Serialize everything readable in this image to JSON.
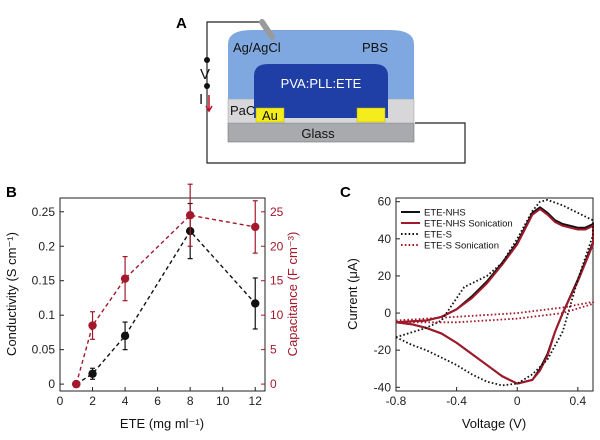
{
  "panel_labels": {
    "a": "A",
    "b": "B",
    "c": "C"
  },
  "schematic": {
    "labels": {
      "electrode": "Ag/AgCl",
      "electrolyte": "PBS",
      "film": "PVA:PLL:ETE",
      "passivation": "PaC",
      "contact": "Au",
      "substrate": "Glass",
      "voltage": "V",
      "current": "I"
    },
    "colors": {
      "electrolyte": "#7fa8e0",
      "film": "#1f3fa6",
      "gold": "#f4ec1c",
      "glass": "#a9aaae",
      "pac": "#d7d7d9"
    }
  },
  "chart_data": [
    {
      "type": "scatter",
      "panel": "B",
      "xlabel": "ETE (mg ml⁻¹)",
      "ylabel": "Conductivity (S cm⁻¹)",
      "y2label": "Capacitance (F cm⁻³)",
      "xlim": [
        0,
        12.6
      ],
      "ylim": [
        -0.01,
        0.27
      ],
      "y2lim": [
        -1,
        27
      ],
      "xticks": [
        0,
        2,
        4,
        6,
        8,
        10,
        12
      ],
      "yticks": [
        0,
        0.05,
        0.1,
        0.15,
        0.2,
        0.25
      ],
      "yticklabels": [
        "0",
        "0.05",
        "0.1",
        "0.15",
        "0.2",
        "0.25"
      ],
      "y2ticks": [
        0,
        5,
        10,
        15,
        20,
        25
      ],
      "series": [
        {
          "axis": "left",
          "color": "#111111",
          "x": [
            1,
            2,
            4,
            8,
            12
          ],
          "y": [
            0.0,
            0.015,
            0.07,
            0.222,
            0.117
          ],
          "err": [
            0.0,
            0.008,
            0.02,
            0.04,
            0.037
          ]
        },
        {
          "axis": "right",
          "color": "#a3192b",
          "x": [
            1,
            2,
            4,
            8,
            12
          ],
          "y": [
            0.0,
            8.5,
            15.3,
            24.5,
            22.8
          ],
          "err": [
            0.0,
            2.0,
            3.2,
            4.5,
            3.8
          ]
        }
      ],
      "grid": false
    },
    {
      "type": "line",
      "panel": "C",
      "xlabel": "Voltage (V)",
      "ylabel": "Current (μA)",
      "xlim": [
        -0.8,
        0.5
      ],
      "ylim": [
        -42,
        62
      ],
      "xticks": [
        -0.8,
        -0.4,
        0,
        0.4
      ],
      "xticklabels": [
        "-0.8",
        "-0.4",
        "0",
        "0.4"
      ],
      "yticks": [
        -40,
        -20,
        0,
        20,
        40,
        60
      ],
      "legend_position": "top-left",
      "series": [
        {
          "name": "ETE-NHS",
          "color": "#111111",
          "dash": "solid",
          "x": [
            -0.8,
            -0.6,
            -0.5,
            -0.4,
            -0.3,
            -0.2,
            -0.1,
            0.0,
            0.05,
            0.1,
            0.15,
            0.2,
            0.25,
            0.3,
            0.35,
            0.4,
            0.45,
            0.5,
            0.5,
            0.45,
            0.4,
            0.3,
            0.25,
            0.2,
            0.15,
            0.1,
            0.0,
            -0.1,
            -0.2,
            -0.3,
            -0.4,
            -0.5,
            -0.6,
            -0.7,
            -0.8
          ],
          "y": [
            -5,
            -4,
            -2,
            2,
            9,
            17,
            27,
            38,
            46,
            54,
            57,
            54,
            50,
            48,
            47,
            46,
            46,
            48,
            38,
            28,
            18,
            0,
            -10,
            -22,
            -30,
            -36,
            -38,
            -34,
            -28,
            -22,
            -16,
            -11,
            -8,
            -6,
            -5
          ]
        },
        {
          "name": "ETE-NHS Sonication",
          "color": "#a3192b",
          "dash": "solid",
          "x": [
            -0.8,
            -0.6,
            -0.5,
            -0.4,
            -0.3,
            -0.2,
            -0.1,
            0.0,
            0.05,
            0.1,
            0.15,
            0.2,
            0.25,
            0.3,
            0.35,
            0.4,
            0.45,
            0.5,
            0.5,
            0.45,
            0.4,
            0.3,
            0.25,
            0.2,
            0.15,
            0.1,
            0.0,
            -0.1,
            -0.2,
            -0.3,
            -0.4,
            -0.5,
            -0.6,
            -0.7,
            -0.8
          ],
          "y": [
            -5,
            -4,
            -2,
            2,
            8,
            16,
            26,
            37,
            45,
            53,
            56,
            53,
            49,
            47,
            46,
            45,
            45,
            47,
            37,
            27,
            17,
            0,
            -10,
            -23,
            -31,
            -36,
            -38,
            -34,
            -28,
            -22,
            -16,
            -11,
            -8,
            -6,
            -5
          ]
        },
        {
          "name": "ETE-S",
          "color": "#111111",
          "dash": "dotted",
          "x": [
            -0.8,
            -0.6,
            -0.5,
            -0.4,
            -0.35,
            -0.3,
            -0.2,
            -0.1,
            0.0,
            0.1,
            0.15,
            0.2,
            0.3,
            0.4,
            0.45,
            0.5,
            0.5,
            0.45,
            0.4,
            0.3,
            0.2,
            0.1,
            0.0,
            -0.1,
            -0.2,
            -0.3,
            -0.4,
            -0.5,
            -0.6,
            -0.7,
            -0.8
          ],
          "y": [
            -13,
            -8,
            -4,
            8,
            14,
            16,
            20,
            27,
            40,
            55,
            60,
            61,
            58,
            54,
            52,
            50,
            42,
            30,
            18,
            -10,
            -25,
            -33,
            -38,
            -39,
            -37,
            -33,
            -28,
            -24,
            -20,
            -17,
            -13
          ]
        },
        {
          "name": "ETE-S Sonication",
          "color": "#a3192b",
          "dash": "dotted",
          "x": [
            -0.8,
            -0.4,
            0.0,
            0.3,
            0.5,
            0.5,
            0.3,
            0.0,
            -0.4,
            -0.8
          ],
          "y": [
            -4,
            -2,
            0,
            3,
            6,
            5,
            0,
            -3,
            -5,
            -5
          ]
        }
      ],
      "grid": false
    }
  ]
}
